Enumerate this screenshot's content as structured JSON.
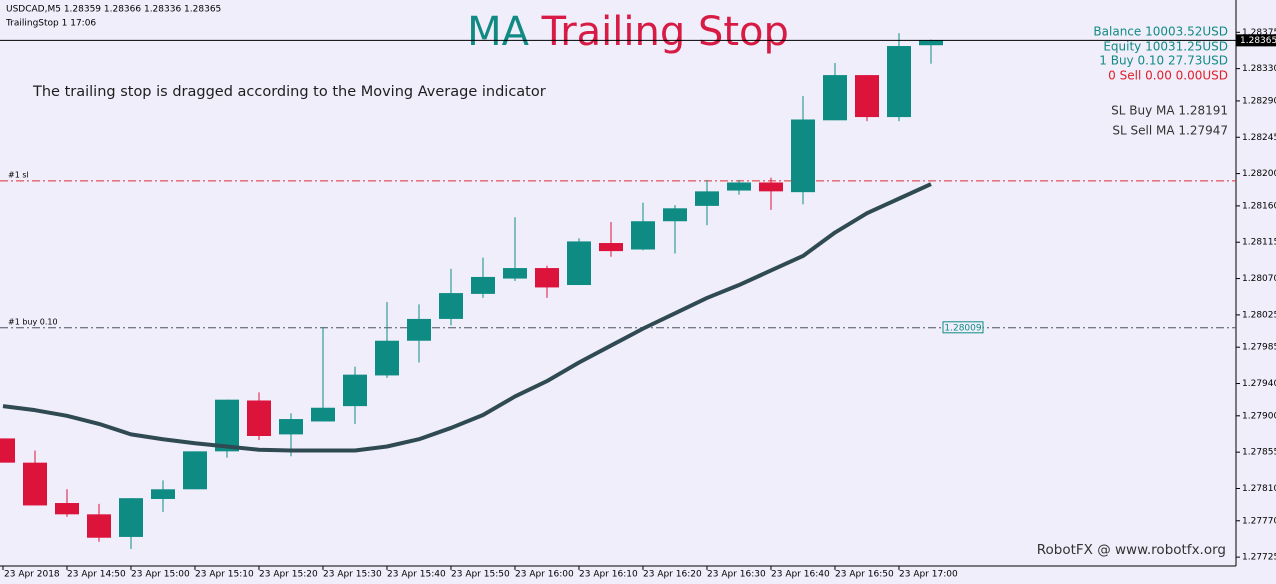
{
  "chart_data": {
    "type": "candlestick",
    "header": "USDCAD,M5  1.28359 1.28366 1.28336 1.28365",
    "expert": "TrailingStop 1 17:06",
    "title_parts": [
      {
        "text": "MA",
        "color": "#128a84"
      },
      {
        "text": "Trailing Stop",
        "color": "#d81b45"
      }
    ],
    "subtitle": "The trailing stop is dragged according to the Moving Average indicator",
    "watermark": "RobotFX @ www.robotfx.org",
    "info": [
      {
        "text": "Balance 10003.52USD",
        "color": "#128a84"
      },
      {
        "text": "Equity 10031.25USD",
        "color": "#128a84"
      },
      {
        "text": "1 Buy 0.10 27.73USD",
        "color": "#128a84"
      },
      {
        "text": "0 Sell 0.00 0.00USD",
        "color": "#e0202a"
      },
      {
        "text": "SL Buy MA 1.28191",
        "color": "#333333"
      },
      {
        "text": "SL Sell MA 1.27947",
        "color": "#333333"
      }
    ],
    "categories": [
      "23 Apr 2018",
      null,
      "23 Apr 14:50",
      null,
      "23 Apr 15:00",
      null,
      "23 Apr 15:10",
      null,
      "23 Apr 15:20",
      null,
      "23 Apr 15:30",
      null,
      "23 Apr 15:40",
      null,
      "23 Apr 15:50",
      null,
      "23 Apr 16:00",
      null,
      "23 Apr 16:10",
      null,
      "23 Apr 16:20",
      null,
      "23 Apr 16:30",
      null,
      "23 Apr 16:40",
      null,
      "23 Apr 16:50",
      null,
      "23 Apr 17:00",
      null
    ],
    "open": [
      1.27872,
      1.27842,
      1.27792,
      1.27778,
      1.2775,
      1.27797,
      1.27809,
      1.27856,
      1.27919,
      1.27877,
      1.27893,
      1.27912,
      1.2795,
      1.27993,
      1.2802,
      1.28051,
      1.2807,
      1.28083,
      1.28062,
      1.28114,
      1.28106,
      1.28141,
      1.2816,
      1.28179,
      1.28189,
      1.28177,
      1.28266,
      1.28322,
      1.2827,
      1.28359
    ],
    "high": [
      1.27872,
      1.27857,
      1.27809,
      1.27791,
      1.27798,
      1.2782,
      1.27856,
      1.2792,
      1.27929,
      1.27903,
      1.2801,
      1.27961,
      1.28041,
      1.28038,
      1.28082,
      1.28096,
      1.28146,
      1.28086,
      1.2812,
      1.2814,
      1.28164,
      1.28161,
      1.28192,
      1.28192,
      1.28195,
      1.28296,
      1.28337,
      1.28322,
      1.28374,
      1.28366
    ],
    "low": [
      1.27842,
      1.27789,
      1.27775,
      1.27744,
      1.27735,
      1.27781,
      1.27809,
      1.27848,
      1.2787,
      1.2785,
      1.27893,
      1.2789,
      1.27947,
      1.27966,
      1.28012,
      1.28046,
      1.28067,
      1.28046,
      1.28062,
      1.28097,
      1.28105,
      1.28101,
      1.28136,
      1.28174,
      1.28155,
      1.28162,
      1.28266,
      1.28265,
      1.28265,
      1.28336
    ],
    "close": [
      1.27842,
      1.27789,
      1.27778,
      1.27749,
      1.27798,
      1.27809,
      1.27856,
      1.2792,
      1.27875,
      1.27896,
      1.2791,
      1.27951,
      1.27993,
      1.2802,
      1.28052,
      1.28072,
      1.28083,
      1.28059,
      1.28116,
      1.28104,
      1.28141,
      1.28157,
      1.28178,
      1.28189,
      1.28178,
      1.28267,
      1.28322,
      1.2827,
      1.28358,
      1.28365
    ],
    "up_color": "#0e8c84",
    "down_color": "#dc143c",
    "ma_values": [
      1.27912,
      1.27907,
      1.279,
      1.2789,
      1.27877,
      1.27871,
      1.27866,
      1.27862,
      1.27858,
      1.27857,
      1.27857,
      1.27857,
      1.27862,
      1.27871,
      1.27885,
      1.27901,
      1.27924,
      1.27943,
      1.27966,
      1.27987,
      1.28008,
      1.28027,
      1.28046,
      1.28062,
      1.2808,
      1.28098,
      1.28127,
      1.28151,
      1.28169,
      1.28187
    ],
    "ma_color": "#2f4a52",
    "levels": [
      {
        "label": "#1 sl",
        "value": 1.28191,
        "color": "#e0302f"
      },
      {
        "label": "#1 buy 0.10",
        "value": 1.28009,
        "value_label": "1.28009",
        "color": "#4a5560"
      }
    ],
    "last_price": 1.28365,
    "ylim": [
      1.27714,
      1.28415
    ],
    "yticks": [
      1.28375,
      {
        "value": 1.2833,
        "label": "1.28330"
      },
      {
        "value": 1.2829,
        "label": "1.28290"
      },
      1.28245,
      {
        "value": 1.282,
        "label": "1.28200"
      },
      {
        "value": 1.2816,
        "label": "1.28160"
      },
      1.28115,
      {
        "value": 1.2807,
        "label": "1.28070"
      },
      1.28025,
      1.27985,
      {
        "value": 1.2794,
        "label": "1.27940"
      },
      {
        "value": 1.279,
        "label": "1.27900"
      },
      1.27855,
      {
        "value": 1.2781,
        "label": "1.27810"
      },
      {
        "value": 1.2777,
        "label": "1.27770"
      },
      1.27725
    ]
  }
}
